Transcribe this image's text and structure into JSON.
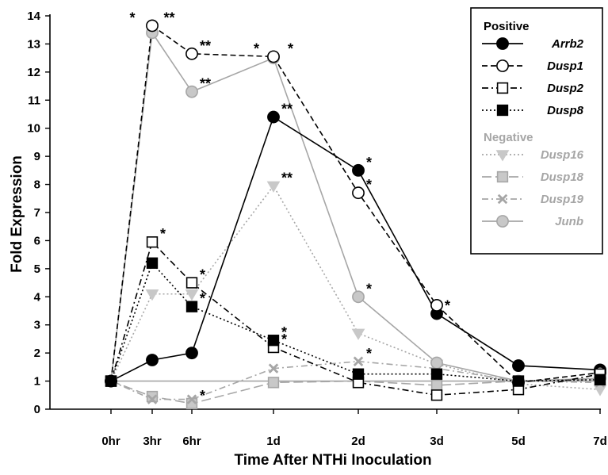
{
  "chart_data": {
    "type": "line",
    "title": "",
    "xlabel": "Time After NTHi Inoculation",
    "ylabel": "Fold Expression",
    "categories": [
      "0hr",
      "3hr",
      "6hr",
      "1d",
      "2d",
      "3d",
      "5d",
      "7d"
    ],
    "ylim": [
      0,
      14
    ],
    "yticks": [
      0,
      1,
      2,
      3,
      4,
      5,
      6,
      7,
      8,
      9,
      10,
      11,
      12,
      13,
      14
    ],
    "grid": false,
    "baseline": 1,
    "legend_position": "top-right",
    "legend_groups": [
      {
        "title": "Positive",
        "color": "#000000",
        "series": [
          "Arrb2",
          "Dusp1",
          "Dusp2",
          "Dusp8"
        ]
      },
      {
        "title": "Negative",
        "color": "#a6a6a6",
        "series": [
          "Dusp16",
          "Dusp18",
          "Dusp19",
          "Junb"
        ]
      }
    ],
    "series": [
      {
        "name": "Arrb2",
        "values": [
          1,
          1.75,
          2,
          10.4,
          8.5,
          3.4,
          1.55,
          1.4
        ],
        "marker": "filled-circle",
        "dash": "solid",
        "color": "#000000",
        "fill": "#000000",
        "significance": [
          "",
          "",
          "",
          "**",
          "*",
          "*",
          "",
          ""
        ]
      },
      {
        "name": "Dusp1",
        "values": [
          1,
          13.65,
          12.65,
          12.55,
          7.7,
          3.7,
          0.95,
          1.3
        ],
        "marker": "open-circle",
        "dash": "dashed",
        "color": "#000000",
        "fill": "#ffffff",
        "significance": [
          "",
          "* **",
          "**",
          "* *",
          "*",
          "",
          "",
          ""
        ]
      },
      {
        "name": "Dusp2",
        "values": [
          1,
          5.95,
          4.5,
          2.2,
          0.95,
          0.5,
          0.7,
          1.25
        ],
        "marker": "open-square",
        "dash": "dash-dot",
        "color": "#000000",
        "fill": "#ffffff",
        "significance": [
          "",
          "*",
          "*",
          "*",
          "",
          "",
          "",
          ""
        ]
      },
      {
        "name": "Dusp8",
        "values": [
          1,
          5.2,
          3.65,
          2.45,
          1.25,
          1.25,
          1.0,
          1.05
        ],
        "marker": "filled-square",
        "dash": "dotted",
        "color": "#000000",
        "fill": "#000000",
        "significance": [
          "",
          "",
          "*",
          "*",
          "",
          "",
          "",
          ""
        ]
      },
      {
        "name": "Dusp16",
        "values": [
          1,
          4.1,
          4.1,
          7.95,
          2.7,
          1.6,
          0.9,
          0.7
        ],
        "marker": "down-triangle",
        "dash": "dotted",
        "color": "#a6a6a6",
        "fill": "#c8c8c8",
        "significance": [
          "",
          "",
          "",
          "**",
          "",
          "",
          "",
          ""
        ]
      },
      {
        "name": "Dusp18",
        "values": [
          1,
          0.45,
          0.2,
          0.95,
          1.0,
          0.85,
          1.0,
          1.05
        ],
        "marker": "filled-square",
        "dash": "long-dash",
        "color": "#a6a6a6",
        "fill": "#c8c8c8",
        "significance": [
          "",
          "",
          "*",
          "",
          "",
          "",
          "",
          ""
        ]
      },
      {
        "name": "Dusp19",
        "values": [
          1,
          0.35,
          0.35,
          1.45,
          1.7,
          1.45,
          1.0,
          0.95
        ],
        "marker": "x",
        "dash": "dash-dot",
        "color": "#a6a6a6",
        "fill": "#a6a6a6",
        "significance": [
          "",
          "",
          "",
          "",
          "*",
          "",
          "",
          ""
        ]
      },
      {
        "name": "Junb",
        "values": [
          1,
          13.4,
          11.3,
          12.5,
          4.0,
          1.65,
          1.0,
          1.1
        ],
        "marker": "filled-circle",
        "dash": "solid",
        "color": "#a6a6a6",
        "fill": "#c8c8c8",
        "significance": [
          "",
          "",
          "**",
          "",
          "*",
          "",
          "",
          ""
        ]
      }
    ]
  }
}
